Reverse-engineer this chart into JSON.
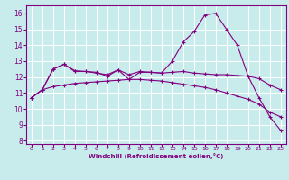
{
  "xlabel": "Windchill (Refroidissement éolien,°C)",
  "background_color": "#c8ecec",
  "grid_color": "#ffffff",
  "line_color": "#800080",
  "xlim": [
    -0.5,
    23.5
  ],
  "ylim": [
    7.8,
    16.5
  ],
  "xticks": [
    0,
    1,
    2,
    3,
    4,
    5,
    6,
    7,
    8,
    9,
    10,
    11,
    12,
    13,
    14,
    15,
    16,
    17,
    18,
    19,
    20,
    21,
    22,
    23
  ],
  "yticks": [
    8,
    9,
    10,
    11,
    12,
    13,
    14,
    15,
    16
  ],
  "curve1_x": [
    0,
    1,
    2,
    3,
    4,
    5,
    6,
    7,
    8,
    9,
    10,
    11,
    12,
    13,
    14,
    15,
    16,
    17,
    18,
    19,
    20,
    21,
    22,
    23
  ],
  "curve1_y": [
    10.7,
    11.2,
    11.4,
    11.5,
    11.6,
    11.65,
    11.7,
    11.75,
    11.8,
    11.85,
    11.85,
    11.8,
    11.75,
    11.65,
    11.55,
    11.45,
    11.35,
    11.2,
    11.0,
    10.8,
    10.6,
    10.3,
    9.8,
    9.5
  ],
  "curve2_x": [
    0,
    1,
    2,
    3,
    4,
    5,
    6,
    7,
    8,
    9,
    10,
    11,
    12,
    13,
    14,
    15,
    16,
    17,
    18,
    19,
    20,
    21,
    22,
    23
  ],
  "curve2_y": [
    10.7,
    11.2,
    12.5,
    12.8,
    12.4,
    12.35,
    12.3,
    12.05,
    12.45,
    11.85,
    12.3,
    12.3,
    12.25,
    13.0,
    14.2,
    14.85,
    15.9,
    16.0,
    15.0,
    14.0,
    12.05,
    10.7,
    9.5,
    8.65
  ],
  "curve3_x": [
    0,
    1,
    2,
    3,
    4,
    5,
    6,
    7,
    8,
    9,
    10,
    11,
    12,
    13,
    14,
    15,
    16,
    17,
    18,
    19,
    20,
    21,
    22,
    23
  ],
  "curve3_y": [
    10.7,
    11.2,
    12.5,
    12.8,
    12.35,
    12.35,
    12.25,
    12.15,
    12.45,
    12.15,
    12.35,
    12.3,
    12.25,
    12.3,
    12.35,
    12.25,
    12.2,
    12.15,
    12.15,
    12.1,
    12.05,
    11.9,
    11.5,
    11.2
  ]
}
